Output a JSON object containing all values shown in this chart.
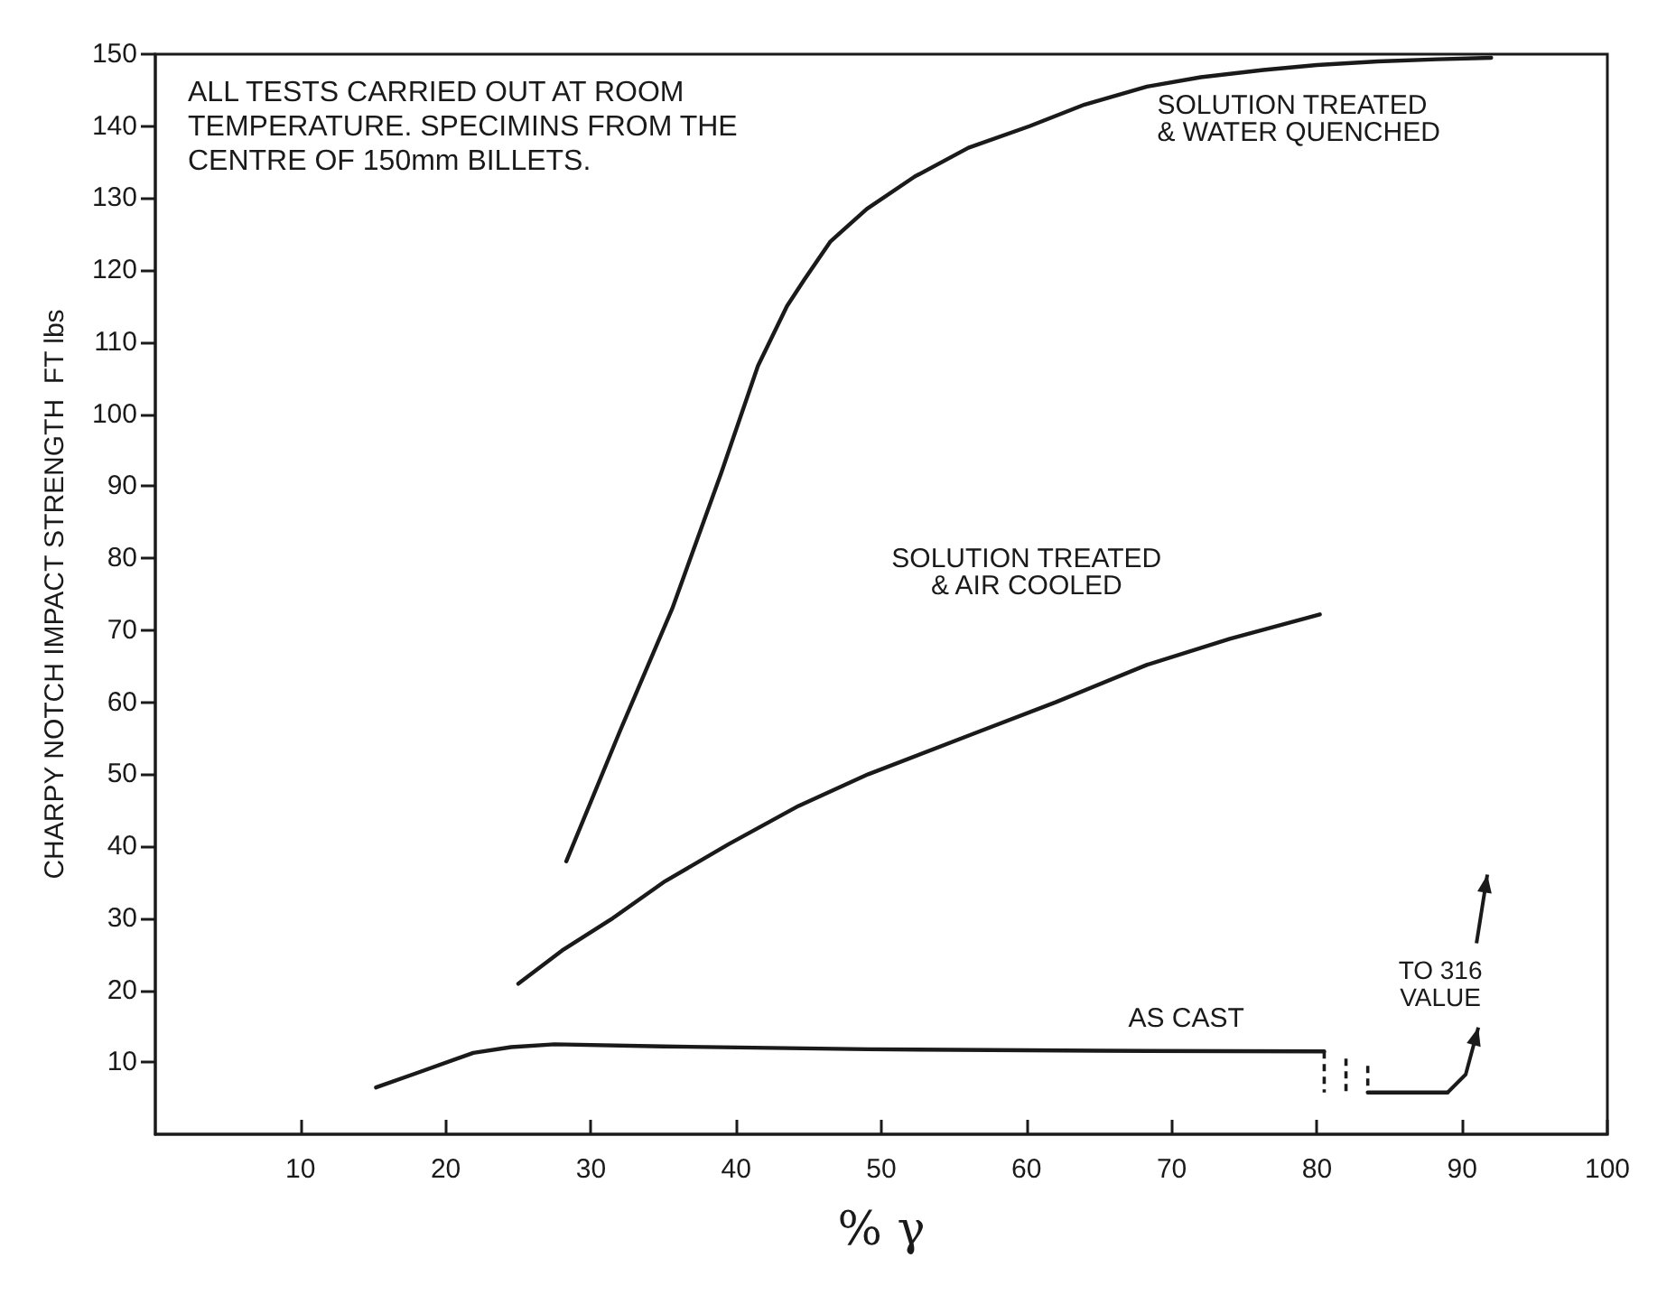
{
  "chart_data": {
    "type": "line",
    "xlabel": "% γ",
    "ylabel": "CHARPY NOTCH IMPACT STRENGTH  FT lbs",
    "xlim": [
      0,
      100
    ],
    "xticks": [
      10,
      20,
      30,
      40,
      50,
      60,
      70,
      80,
      90,
      100
    ],
    "ylim": [
      0,
      150
    ],
    "yticks": [
      10,
      20,
      30,
      40,
      50,
      60,
      70,
      80,
      90,
      100,
      110,
      120,
      130,
      140,
      150
    ],
    "grid": false,
    "legend": false,
    "marker": "none",
    "line_style": "solid",
    "series": [
      {
        "name": "SOLUTION TREATED\n& WATER QUENCHED",
        "color": "#1a1a1a",
        "x": [
          28.3,
          32,
          35.6,
          39,
          41.5,
          43.5,
          44.7,
          46.5,
          49,
          52.3,
          56,
          60.2,
          64,
          68.3,
          72,
          76.3,
          80,
          84.2,
          88.3,
          92
        ],
        "values": [
          37.9,
          56,
          73,
          92,
          106.7,
          115,
          118.7,
          124,
          128.5,
          133,
          137,
          140,
          143,
          145.5,
          146.8,
          147.8,
          148.5,
          149,
          149.3,
          149.5
        ]
      },
      {
        "name": "SOLUTION TREATED\n& AIR COOLED",
        "color": "#1a1a1a",
        "x": [
          25,
          28,
          31.5,
          35,
          39.5,
          44.3,
          49.1,
          56.3,
          62,
          68.3,
          74,
          80.2
        ],
        "values": [
          20.9,
          25.5,
          30,
          35,
          40.3,
          45.6,
          50,
          55.6,
          60,
          65.2,
          68.8,
          72.2
        ]
      },
      {
        "name": "AS CAST",
        "color": "#1a1a1a",
        "x": [
          15.2,
          18,
          21.9,
          24.5,
          27.5,
          35,
          49.1,
          65,
          80.5,
          82,
          83.5,
          89
        ],
        "values": [
          6.5,
          8.5,
          11.3,
          12.1,
          12.5,
          12.2,
          11.8,
          11.6,
          11.5,
          null,
          5.8,
          5.8
        ]
      }
    ],
    "annotations": [
      "ALL TESTS CARRIED OUT AT ROOM\nTEMPERATURE. SPECIMINS FROM THE\nCENTRE OF 150mm BILLETS.",
      "TO 316\nVALUE"
    ]
  }
}
